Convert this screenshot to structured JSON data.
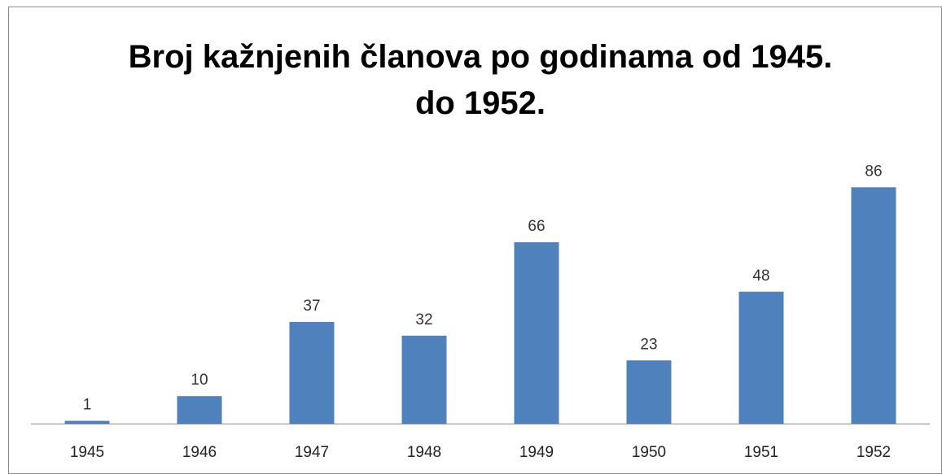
{
  "chart_data": {
    "type": "bar",
    "title": [
      "Broj kažnjenih članova po godinama od 1945.",
      "do 1952."
    ],
    "categories": [
      "1945",
      "1946",
      "1947",
      "1948",
      "1949",
      "1950",
      "1951",
      "1952"
    ],
    "values": [
      1,
      10,
      37,
      32,
      66,
      23,
      48,
      86
    ],
    "color": "#4f81bd",
    "ylim": [
      0,
      100
    ]
  }
}
